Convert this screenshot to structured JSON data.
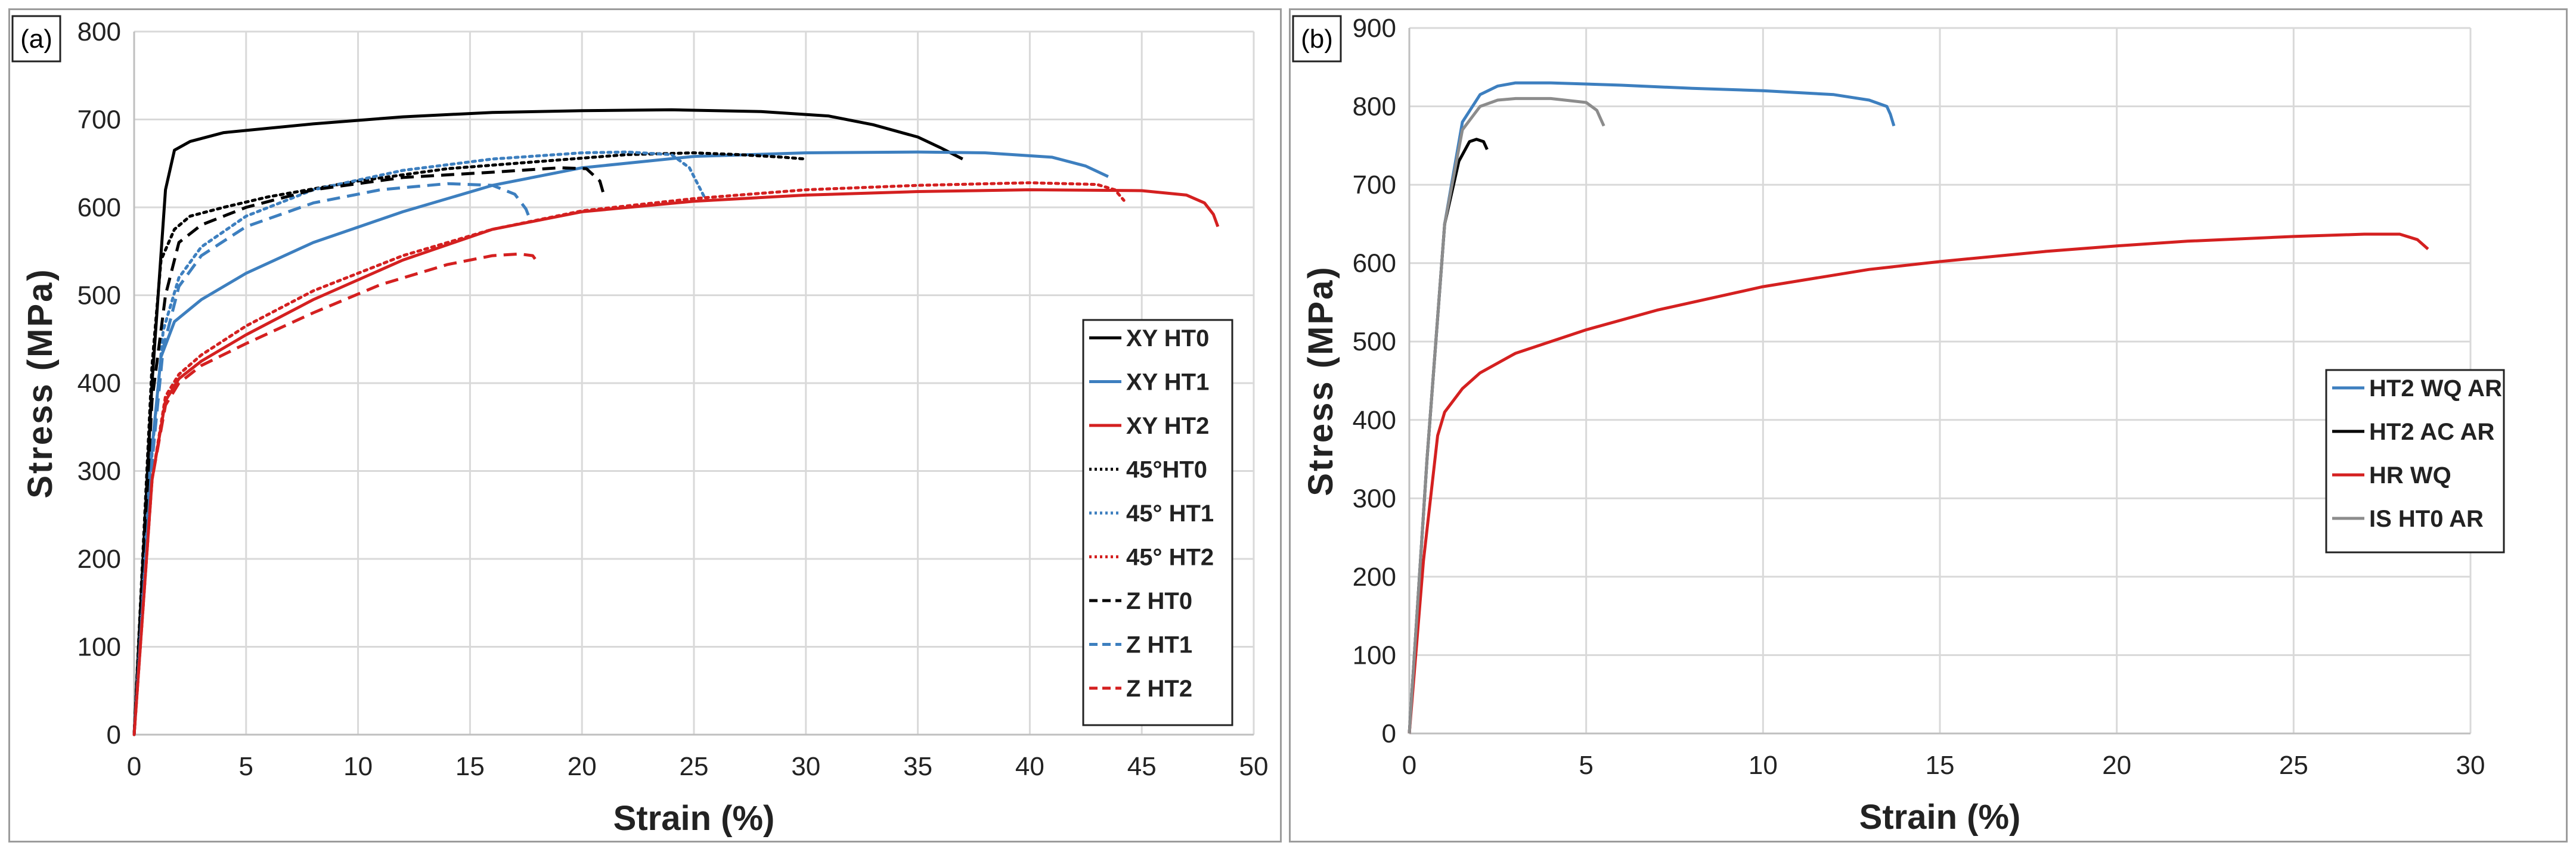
{
  "chart_data": [
    {
      "type": "line",
      "panel_label": "(a)",
      "xlabel": "Strain (%)",
      "ylabel": "Stress (MPa)",
      "xlim": [
        0,
        50
      ],
      "ylim": [
        0,
        800
      ],
      "xticks": [
        0,
        5,
        10,
        15,
        20,
        25,
        30,
        35,
        40,
        45,
        50
      ],
      "yticks": [
        0,
        100,
        200,
        300,
        400,
        500,
        600,
        700,
        800
      ],
      "grid": true,
      "legend_position": "right",
      "series": [
        {
          "name": "XY HT0",
          "color": "#000000",
          "style": "solid",
          "x": [
            0,
            0.8,
            1.4,
            1.8,
            2.5,
            4,
            8,
            12,
            16,
            20,
            24,
            28,
            31,
            33,
            35,
            36,
            37
          ],
          "y": [
            0,
            400,
            620,
            665,
            675,
            685,
            695,
            703,
            708,
            710,
            711,
            709,
            704,
            694,
            680,
            668,
            655
          ]
        },
        {
          "name": "XY HT1",
          "color": "#3d7fbf",
          "style": "solid",
          "x": [
            0,
            0.7,
            1.2,
            1.8,
            3,
            5,
            8,
            12,
            16,
            20,
            25,
            30,
            35,
            38,
            41,
            42.5,
            43.5
          ],
          "y": [
            0,
            300,
            430,
            470,
            495,
            525,
            560,
            595,
            625,
            645,
            658,
            662,
            663,
            662,
            657,
            647,
            635
          ]
        },
        {
          "name": "XY HT2",
          "color": "#d42020",
          "style": "solid",
          "x": [
            0,
            0.8,
            1.4,
            2,
            3,
            5,
            8,
            12,
            16,
            20,
            25,
            30,
            35,
            40,
            45,
            47,
            47.8,
            48.2,
            48.4
          ],
          "y": [
            0,
            290,
            380,
            405,
            425,
            455,
            495,
            540,
            575,
            595,
            607,
            614,
            618,
            620,
            619,
            614,
            605,
            592,
            578
          ]
        },
        {
          "name": "45°HT0",
          "color": "#000000",
          "style": "dotted",
          "x": [
            0,
            0.8,
            1.2,
            1.8,
            2.5,
            4,
            6,
            10,
            14,
            18,
            22,
            25,
            27,
            29,
            30
          ],
          "y": [
            0,
            420,
            540,
            575,
            590,
            600,
            612,
            630,
            644,
            652,
            660,
            662,
            660,
            657,
            655
          ]
        },
        {
          "name": "45° HT1",
          "color": "#3d7fbf",
          "style": "dotted",
          "x": [
            0,
            0.8,
            1.3,
            2,
            3,
            5,
            8,
            12,
            16,
            20,
            22,
            24,
            24.8,
            25.2,
            25.5
          ],
          "y": [
            0,
            320,
            460,
            520,
            555,
            590,
            620,
            642,
            655,
            662,
            663,
            660,
            645,
            625,
            610
          ]
        },
        {
          "name": "45° HT2",
          "color": "#d42020",
          "style": "dotted",
          "x": [
            0,
            0.8,
            1.4,
            2,
            3,
            5,
            8,
            12,
            16,
            20,
            25,
            30,
            35,
            40,
            43,
            43.8,
            44.2
          ],
          "y": [
            0,
            290,
            385,
            410,
            432,
            465,
            505,
            545,
            575,
            596,
            610,
            620,
            625,
            628,
            626,
            620,
            608
          ]
        },
        {
          "name": "Z HT0",
          "color": "#000000",
          "style": "dashed",
          "x": [
            0,
            0.8,
            1.4,
            2,
            3,
            5,
            8,
            12,
            16,
            19,
            20.2,
            20.8,
            21
          ],
          "y": [
            0,
            380,
            500,
            560,
            580,
            600,
            620,
            634,
            640,
            645,
            644,
            630,
            612
          ]
        },
        {
          "name": "Z HT1",
          "color": "#3d7fbf",
          "style": "dashed",
          "x": [
            0,
            0.8,
            1.3,
            2,
            3,
            5,
            8,
            11,
            14,
            16,
            17,
            17.5,
            17.7
          ],
          "y": [
            0,
            310,
            440,
            510,
            545,
            578,
            605,
            620,
            627,
            625,
            615,
            598,
            585
          ]
        },
        {
          "name": "Z HT2",
          "color": "#d42020",
          "style": "dashed",
          "x": [
            0,
            0.8,
            1.4,
            2,
            3,
            5,
            8,
            11,
            14,
            16,
            17.2,
            17.8,
            18
          ],
          "y": [
            0,
            290,
            375,
            400,
            420,
            445,
            480,
            512,
            535,
            545,
            547,
            545,
            538
          ]
        }
      ]
    },
    {
      "type": "line",
      "panel_label": "(b)",
      "xlabel": "Strain (%)",
      "ylabel": "Stress (MPa)",
      "xlim": [
        0,
        30
      ],
      "ylim": [
        0,
        900
      ],
      "xticks": [
        0,
        5,
        10,
        15,
        20,
        25,
        30
      ],
      "yticks": [
        0,
        100,
        200,
        300,
        400,
        500,
        600,
        700,
        800,
        900
      ],
      "grid": true,
      "legend_position": "right",
      "series": [
        {
          "name": "HT2 WQ AR",
          "color": "#3d7fbf",
          "style": "solid",
          "x": [
            0,
            0.5,
            1,
            1.5,
            2,
            2.5,
            3,
            4,
            6,
            8,
            10,
            12,
            13,
            13.5,
            13.6,
            13.7
          ],
          "y": [
            0,
            350,
            650,
            780,
            815,
            826,
            830,
            830,
            827,
            823,
            820,
            815,
            808,
            800,
            790,
            775
          ]
        },
        {
          "name": "HT2 AC AR",
          "color": "#000000",
          "style": "solid",
          "x": [
            0,
            0.5,
            1,
            1.4,
            1.7,
            1.9,
            2.1,
            2.2
          ],
          "y": [
            0,
            350,
            650,
            730,
            755,
            758,
            755,
            745
          ]
        },
        {
          "name": "HR WQ",
          "color": "#d42020",
          "style": "solid",
          "x": [
            0,
            0.4,
            0.8,
            1,
            1.5,
            2,
            3,
            4,
            5,
            7,
            10,
            13,
            15,
            18,
            20,
            22,
            25,
            27,
            28,
            28.5,
            28.8
          ],
          "y": [
            0,
            220,
            380,
            410,
            440,
            460,
            485,
            500,
            515,
            540,
            570,
            592,
            602,
            615,
            622,
            628,
            634,
            637,
            637,
            630,
            618
          ]
        },
        {
          "name": "IS HT0 AR",
          "color": "#8c8c8c",
          "style": "solid",
          "x": [
            0,
            0.5,
            1,
            1.5,
            2,
            2.5,
            3,
            4,
            5,
            5.3,
            5.4,
            5.5
          ],
          "y": [
            0,
            350,
            650,
            770,
            800,
            808,
            810,
            810,
            805,
            795,
            785,
            775
          ]
        }
      ]
    }
  ]
}
